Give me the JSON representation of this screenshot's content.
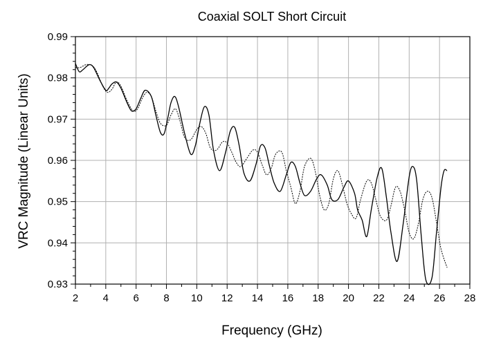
{
  "chart_data": {
    "type": "line",
    "title": "Coaxial SOLT Short Circuit",
    "xlabel": "Frequency (GHz)",
    "ylabel": "VRC Magnitude (Linear Units)",
    "xlim": [
      2,
      28
    ],
    "ylim": [
      0.93,
      0.99
    ],
    "xticks": [
      2,
      4,
      6,
      8,
      10,
      12,
      14,
      16,
      18,
      20,
      22,
      24,
      26,
      28
    ],
    "yticks": [
      0.93,
      0.94,
      0.95,
      0.96,
      0.97,
      0.98,
      0.99
    ],
    "ytick_labels": [
      "0.93",
      "0.94",
      "0.95",
      "0.96",
      "0.97",
      "0.98",
      "0.99"
    ],
    "grid": true,
    "legend": "none",
    "colors": {
      "axis": "#000000",
      "grid": "#b0b0b0",
      "line": "#000000"
    },
    "series": [
      {
        "style": "solid",
        "x": [
          2.0,
          2.25,
          2.5,
          2.9,
          3.2,
          3.6,
          4.0,
          4.2,
          4.4,
          4.7,
          5.0,
          5.4,
          5.7,
          6.0,
          6.3,
          6.6,
          7.0,
          7.3,
          7.6,
          7.85,
          8.1,
          8.3,
          8.55,
          8.8,
          9.2,
          9.6,
          9.9,
          10.2,
          10.5,
          10.8,
          11.1,
          11.5,
          11.9,
          12.2,
          12.5,
          12.8,
          13.1,
          13.5,
          13.9,
          14.2,
          14.5,
          14.8,
          15.1,
          15.5,
          15.9,
          16.2,
          16.5,
          16.8,
          17.1,
          17.5,
          17.9,
          18.2,
          18.6,
          18.9,
          19.3,
          19.7,
          20.0,
          20.4,
          20.6,
          20.9,
          21.2,
          21.5,
          21.9,
          22.2,
          22.5,
          22.8,
          23.2,
          23.6,
          24.0,
          24.25,
          24.5,
          24.8,
          25.1,
          25.5,
          25.8,
          26.1,
          26.3,
          26.5
        ],
        "y": [
          0.9835,
          0.9815,
          0.982,
          0.9832,
          0.9825,
          0.9795,
          0.977,
          0.9775,
          0.9785,
          0.979,
          0.9775,
          0.974,
          0.972,
          0.9725,
          0.975,
          0.977,
          0.9755,
          0.971,
          0.9668,
          0.9665,
          0.9705,
          0.974,
          0.9755,
          0.973,
          0.9665,
          0.9615,
          0.9635,
          0.969,
          0.973,
          0.971,
          0.9625,
          0.9575,
          0.962,
          0.967,
          0.968,
          0.9635,
          0.957,
          0.955,
          0.959,
          0.9635,
          0.963,
          0.9585,
          0.9545,
          0.9525,
          0.9565,
          0.9595,
          0.9585,
          0.9545,
          0.9515,
          0.9525,
          0.9555,
          0.9565,
          0.954,
          0.9505,
          0.9505,
          0.9535,
          0.955,
          0.952,
          0.948,
          0.9455,
          0.9415,
          0.948,
          0.956,
          0.958,
          0.951,
          0.9425,
          0.9355,
          0.9445,
          0.956,
          0.9585,
          0.955,
          0.9415,
          0.931,
          0.9315,
          0.9425,
          0.9535,
          0.9575,
          0.9575
        ]
      },
      {
        "style": "dotted",
        "x": [
          2.0,
          2.3,
          2.7,
          3.1,
          3.4,
          3.8,
          4.1,
          4.4,
          4.7,
          5.0,
          5.4,
          5.8,
          6.1,
          6.4,
          6.7,
          7.0,
          7.3,
          7.6,
          8.0,
          8.3,
          8.6,
          8.9,
          9.2,
          9.6,
          10.0,
          10.3,
          10.6,
          10.9,
          11.3,
          11.7,
          12.0,
          12.3,
          12.6,
          12.9,
          13.3,
          13.7,
          14.0,
          14.3,
          14.6,
          14.9,
          15.2,
          15.6,
          15.9,
          16.2,
          16.5,
          16.8,
          17.1,
          17.5,
          17.8,
          18.1,
          18.4,
          18.7,
          19.0,
          19.3,
          19.6,
          19.9,
          20.2,
          20.5,
          20.8,
          21.2,
          21.5,
          21.8,
          22.1,
          22.5,
          22.8,
          23.1,
          23.4,
          23.7,
          24.0,
          24.3,
          24.6,
          24.9,
          25.2,
          25.5,
          25.8,
          26.1,
          26.5
        ],
        "y": [
          0.9825,
          0.9825,
          0.9832,
          0.983,
          0.9815,
          0.978,
          0.9765,
          0.9772,
          0.979,
          0.978,
          0.9745,
          0.972,
          0.9725,
          0.975,
          0.9765,
          0.9755,
          0.972,
          0.969,
          0.9685,
          0.971,
          0.9725,
          0.9695,
          0.9655,
          0.965,
          0.9675,
          0.9682,
          0.9665,
          0.963,
          0.9625,
          0.9645,
          0.9642,
          0.962,
          0.9595,
          0.9585,
          0.9605,
          0.9625,
          0.962,
          0.959,
          0.9565,
          0.958,
          0.9615,
          0.962,
          0.9575,
          0.9535,
          0.9495,
          0.9525,
          0.9585,
          0.9605,
          0.9575,
          0.9515,
          0.948,
          0.9495,
          0.9555,
          0.9575,
          0.954,
          0.9495,
          0.947,
          0.946,
          0.9505,
          0.955,
          0.9545,
          0.9505,
          0.9465,
          0.9455,
          0.949,
          0.9535,
          0.9525,
          0.948,
          0.9425,
          0.941,
          0.9445,
          0.9505,
          0.9525,
          0.951,
          0.945,
          0.9385,
          0.934
        ]
      }
    ]
  }
}
